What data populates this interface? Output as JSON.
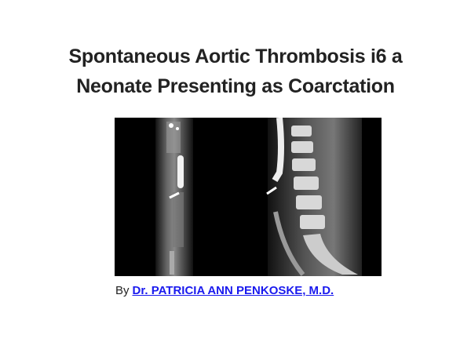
{
  "title": {
    "lines": [
      "Spontaneous Aortic Thrombosis i6 a",
      "Neonate Presenting as Coarctation"
    ]
  },
  "byline": {
    "prefix": "By",
    "author": "Dr. PATRICIA ANN PENKOSKE, M.D."
  }
}
